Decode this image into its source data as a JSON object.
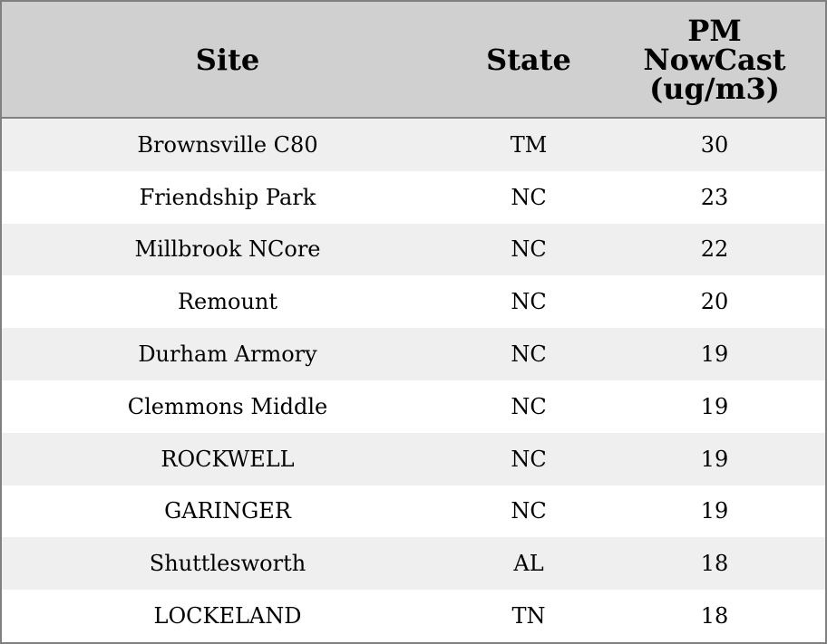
{
  "headers": [
    "Site",
    "State",
    "PM NowCast (ug/m3)"
  ],
  "header_lines": {
    "pm": [
      "PM",
      "NowCast",
      "(ug/m3)"
    ]
  },
  "rows": [
    [
      "Brownsville C80",
      "TM",
      "30"
    ],
    [
      "Friendship Park",
      "NC",
      "23"
    ],
    [
      "Millbrook NCore",
      "NC",
      "22"
    ],
    [
      "Remount",
      "NC",
      "20"
    ],
    [
      "Durham Armory",
      "NC",
      "19"
    ],
    [
      "Clemmons Middle",
      "NC",
      "19"
    ],
    [
      "ROCKWELL",
      "NC",
      "19"
    ],
    [
      "GARINGER",
      "NC",
      "19"
    ],
    [
      "Shuttlesworth",
      "AL",
      "18"
    ],
    [
      "LOCKELAND",
      "TN",
      "18"
    ]
  ],
  "colors": {
    "header_bg": "#d0d0d0",
    "row_alt_bg": "#efefef",
    "border": "#808080"
  }
}
